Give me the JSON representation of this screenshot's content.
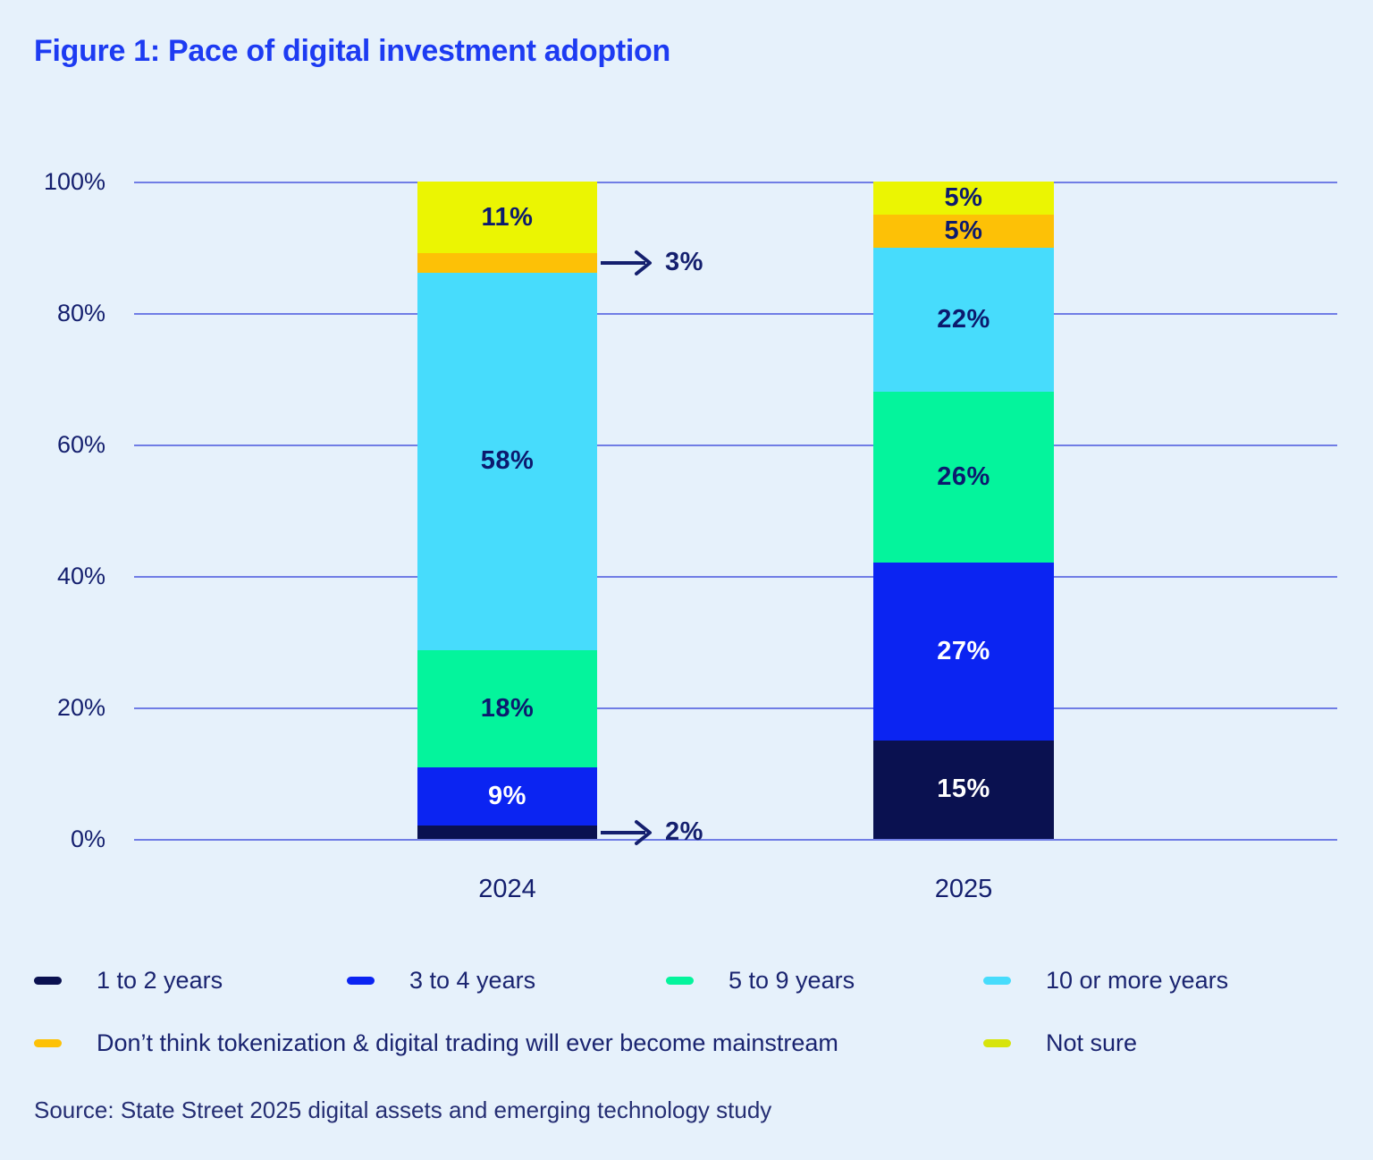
{
  "title": "Figure 1: Pace of digital investment adoption",
  "source": "Source: State Street 2025 digital assets and emerging technology study",
  "colors": {
    "background": "#e6f1fb",
    "title": "#1d3bf2",
    "ink": "#141f6e",
    "gridline": "#4855de",
    "label_dark": "#0c1a6e",
    "label_light": "#ffffff"
  },
  "chart_data": {
    "type": "bar",
    "stacked": true,
    "title": "Figure 1: Pace of digital investment adoption",
    "categories": [
      "2024",
      "2025"
    ],
    "series": [
      {
        "name": "1 to 2 years",
        "color": "#0a1150",
        "label_color": "#ffffff",
        "values": [
          2,
          15
        ]
      },
      {
        "name": "3 to 4 years",
        "color": "#0b24f2",
        "label_color": "#ffffff",
        "values": [
          9,
          27
        ]
      },
      {
        "name": "5 to 9 years",
        "color": "#04f49c",
        "label_color": "#0c1a6e",
        "values": [
          18,
          26
        ]
      },
      {
        "name": "10 or more years",
        "color": "#47dcfc",
        "label_color": "#0c1a6e",
        "values": [
          58,
          22
        ]
      },
      {
        "name": "Don’t think tokenization & digital trading will ever become mainstream",
        "color": "#fdc106",
        "label_color": "#0c1a6e",
        "values": [
          3,
          5
        ]
      },
      {
        "name": "Not sure",
        "color": "#ebf502",
        "label_color": "#0c1a6e",
        "values": [
          11,
          5
        ]
      }
    ],
    "value_suffix": "%",
    "y_ticks": [
      "100%",
      "80%",
      "60%",
      "40%",
      "20%",
      "0%"
    ],
    "ylim": [
      0,
      100
    ],
    "grid": true,
    "legend_position": "bottom",
    "external_labels": [
      {
        "category_index": 0,
        "series_index": 4,
        "text": "3%"
      },
      {
        "category_index": 0,
        "series_index": 0,
        "text": "2%"
      }
    ]
  },
  "legend": {
    "rows": [
      [
        {
          "label": "1 to 2 years",
          "color": "#0a1150"
        },
        {
          "label": "3 to 4 years",
          "color": "#0b24f2"
        },
        {
          "label": "5 to 9 years",
          "color": "#04f49c"
        },
        {
          "label": "10 or more years",
          "color": "#47dcfc"
        }
      ],
      [
        {
          "label": "Don’t think tokenization & digital trading will ever become mainstream",
          "color": "#fdc106"
        },
        {
          "label": "Not sure",
          "color": "#d7e40b"
        }
      ]
    ]
  }
}
